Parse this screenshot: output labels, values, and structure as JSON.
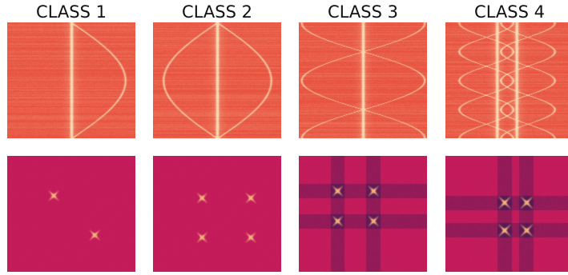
{
  "figure": {
    "columns": [
      {
        "title": "CLASS 1",
        "top_panel": {
          "kind": "sinusoid-map",
          "curves": 1,
          "lines": 1,
          "half_periods": 1,
          "amplitude": 0.42,
          "phase": 0
        },
        "bottom_panel": {
          "kind": "correlation-map",
          "spots": 2
        }
      },
      {
        "title": "CLASS 2",
        "top_panel": {
          "kind": "sinusoid-map",
          "curves": 2,
          "lines": 1,
          "half_periods": 1,
          "amplitude": 0.42,
          "phase": 0
        },
        "bottom_panel": {
          "kind": "correlation-map",
          "spots": 4
        }
      },
      {
        "title": "CLASS 3",
        "top_panel": {
          "kind": "sinusoid-map",
          "curves": 2,
          "lines": 1,
          "half_periods": 2,
          "amplitude": 0.48,
          "phase": 0.5
        },
        "bottom_panel": {
          "kind": "correlation-map",
          "spots": 4,
          "stripes": true
        }
      },
      {
        "title": "CLASS 4",
        "top_panel": {
          "kind": "sinusoid-map",
          "curves": 4,
          "lines": 2,
          "half_periods": 4,
          "amplitude": 0.22,
          "phase": 0.5
        },
        "bottom_panel": {
          "kind": "correlation-map",
          "spots": 4,
          "stripes": true,
          "dark_cells": true
        }
      }
    ],
    "colors": {
      "top_background": "#e8523f",
      "top_highlight": "#f9d8b0",
      "bottom_background": "#c51b5a",
      "bottom_highlight": "#f4b07a",
      "bottom_dark": "#3b1a55",
      "title_text": "#111111"
    }
  }
}
